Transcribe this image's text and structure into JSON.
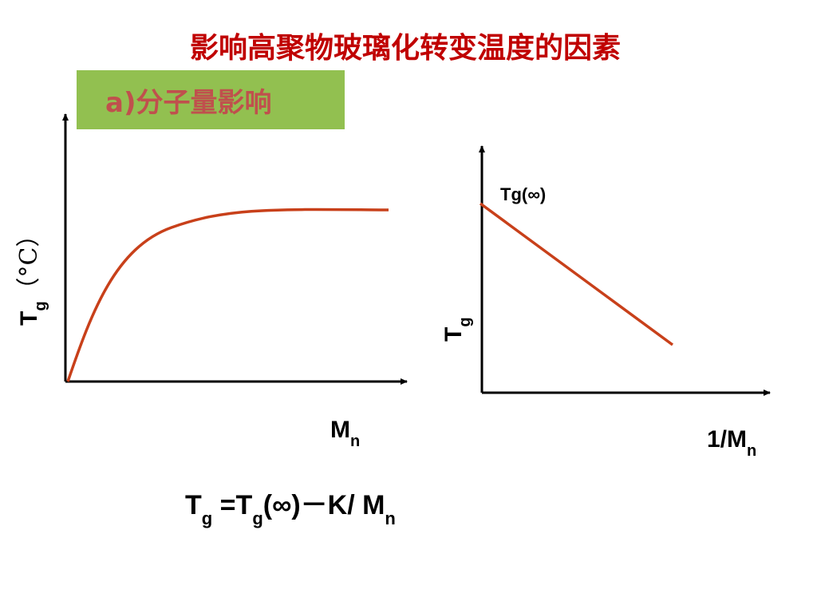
{
  "title": "影响高聚物玻璃化转变温度的因素",
  "section_label": "a)分子量影响",
  "left_diagram": {
    "y_label": {
      "symbol": "T",
      "subscript": "g",
      "unit": "（°C）"
    },
    "x_label": {
      "symbol": "M",
      "subscript": "n"
    }
  },
  "right_diagram": {
    "curve_label": "Tg(∞)",
    "y_label": {
      "symbol": "T",
      "subscript": "g"
    },
    "x_label": {
      "symbol": "1/M",
      "subscript": "n"
    }
  },
  "formula": {
    "segments": [
      {
        "text": "T"
      },
      {
        "subscript": "g"
      },
      {
        "text": " =T"
      },
      {
        "subscript": "g"
      },
      {
        "text": "(∞)－K/ M"
      },
      {
        "subscript": "n"
      }
    ]
  }
}
